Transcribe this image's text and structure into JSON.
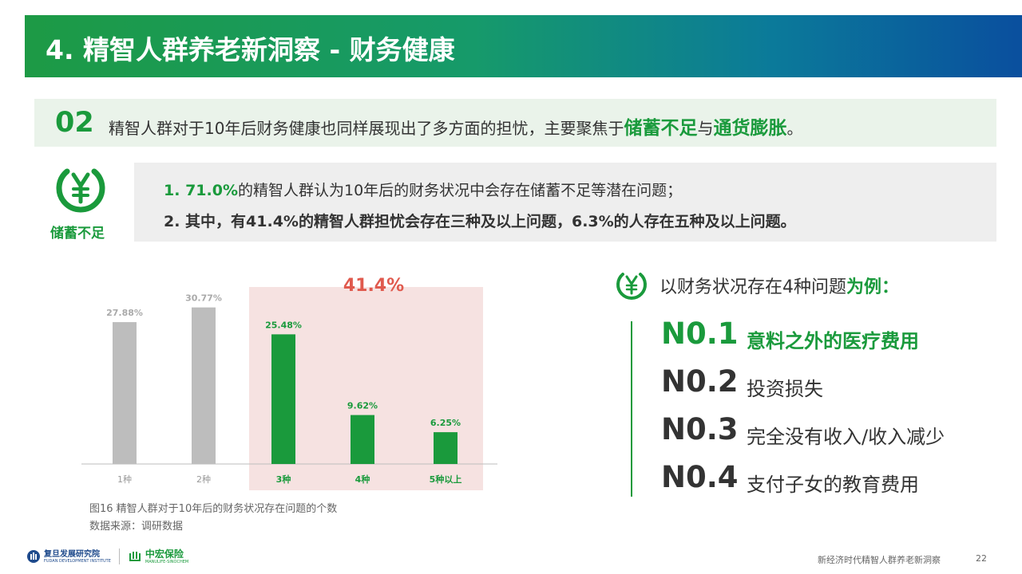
{
  "header": {
    "title": "4. 精智人群养老新洞察 - 财务健康"
  },
  "summary": {
    "number": "02",
    "text_before": "精智人群对于10年后财务健康也同样展现出了多方面的担忧，主要聚焦于",
    "highlight1": "储蓄不足",
    "connector": "与",
    "highlight2": "通货膨胀",
    "end": "。"
  },
  "badge": {
    "icon": "yen-circle-icon",
    "label": "储蓄不足"
  },
  "points": {
    "p1_prefix": "1. ",
    "p1_highlight": "71.0%",
    "p1_text": "的精智人群认为10年后的财务状况中会存在储蓄不足等潜在问题；",
    "p2": "2. 其中，有41.4%的精智人群担忧会存在三种及以上问题，6.3%的人存在五种及以上问题。"
  },
  "chart_data": {
    "type": "bar",
    "categories": [
      "1种",
      "2种",
      "3种",
      "4种",
      "5种以上"
    ],
    "values": [
      27.88,
      30.77,
      25.48,
      9.62,
      6.25
    ],
    "data_labels": [
      "27.88%",
      "30.77%",
      "25.48%",
      "9.62%",
      "6.25%"
    ],
    "highlight_range": [
      "3种",
      "5种以上"
    ],
    "highlight_label": "41.4%",
    "colors": {
      "normal": "#bdbdbd",
      "highlight": "#1a9a3c",
      "band": "#f6e2e1",
      "highlight_label": "#e05a4e"
    },
    "ylim": [
      0,
      34
    ],
    "grid": false
  },
  "caption": {
    "figure": "图16  精智人群对于10年后的财务状况存在问题的个数",
    "source": "数据来源：调研数据"
  },
  "example": {
    "icon": "yen-circle-icon",
    "title_prefix": "以财务状况存在4种问题",
    "title_bold": "为例：",
    "items": [
      {
        "rank": "N0.1",
        "text": "意料之外的医疗费用"
      },
      {
        "rank": "N0.2",
        "text": "投资损失"
      },
      {
        "rank": "N0.3",
        "text": "完全没有收入/收入减少"
      },
      {
        "rank": "N0.4",
        "text": "支付子女的教育费用"
      }
    ]
  },
  "footer": {
    "logo1_text": "复旦发展研究院",
    "logo1_sub": "FUDAN DEVELOPMENT INSTITUTE",
    "logo2_text": "中宏保险",
    "logo2_sub": "MANULIFE-SINOCHEM",
    "report": "新经济时代精智人群养老新洞察",
    "page": "22"
  }
}
